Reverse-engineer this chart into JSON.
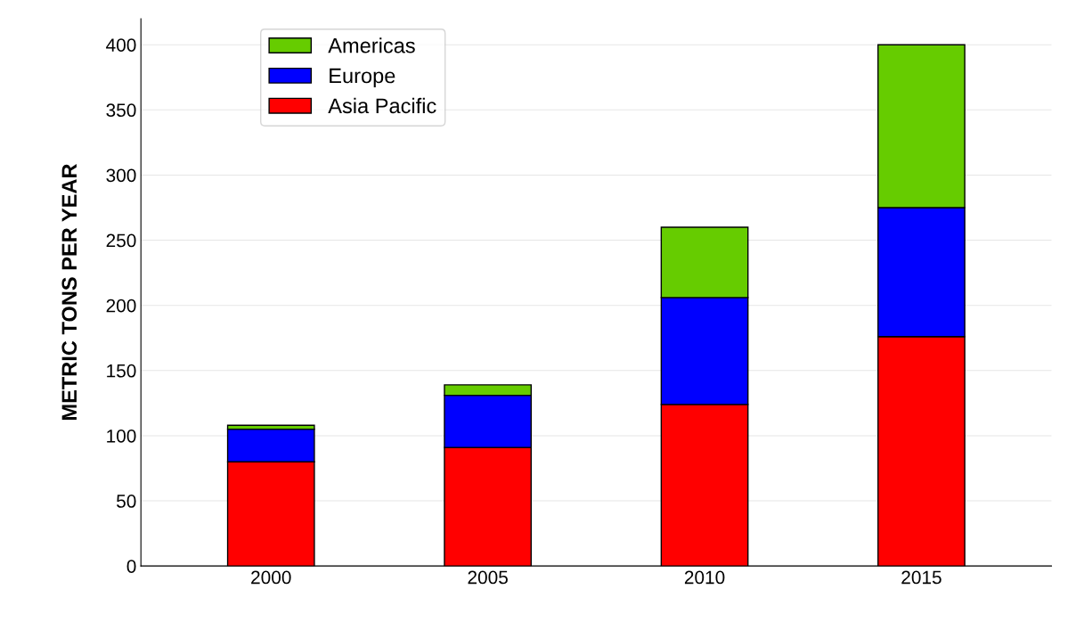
{
  "chart_data": {
    "type": "bar",
    "stacked": true,
    "ylabel": "METRIC TONS PER YEAR",
    "categories": [
      "2000",
      "2005",
      "2010",
      "2015"
    ],
    "series": [
      {
        "name": "Asia Pacific",
        "color": "#ff0000",
        "values": [
          80,
          91,
          124,
          176
        ]
      },
      {
        "name": "Europe",
        "color": "#0000ff",
        "values": [
          25,
          40,
          82,
          99
        ]
      },
      {
        "name": "Americas",
        "color": "#66cc00",
        "values": [
          3,
          8,
          54,
          125
        ]
      }
    ],
    "ylim": [
      0,
      420
    ],
    "yticks": [
      0,
      50,
      100,
      150,
      200,
      250,
      300,
      350,
      400
    ],
    "grid": "y",
    "legend": "top left"
  }
}
